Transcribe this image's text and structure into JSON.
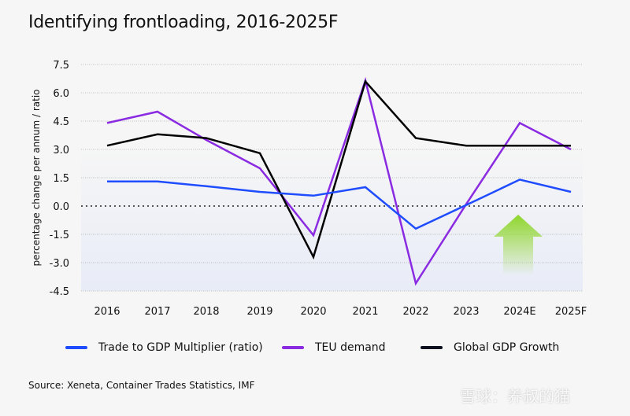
{
  "title": "Identifying frontloading, 2016-2025F",
  "source": "Source: Xeneta, Container Trades Statistics, IMF",
  "watermark": "雪球：养叔的猫",
  "chart_data": {
    "type": "line",
    "title": "Identifying frontloading, 2016-2025F",
    "xlabel": "",
    "ylabel": "percentage change per annum / ratio",
    "categories": [
      "2016",
      "2017",
      "2018",
      "2019",
      "2020",
      "2021",
      "2022",
      "2023",
      "2024E",
      "2025F"
    ],
    "ylim": [
      -4.5,
      7.5
    ],
    "yticks": [
      7.5,
      6.0,
      4.5,
      3.0,
      1.5,
      0.0,
      -1.5,
      -3.0,
      -4.5
    ],
    "ytick_labels": [
      "7.5",
      "6.0",
      "4.5",
      "3.0",
      "1.5",
      "0.0",
      "-1.5",
      "-3.0",
      "-4.5"
    ],
    "grid": true,
    "legend_position": "bottom",
    "series": [
      {
        "name": "Trade to GDP Multiplier (ratio)",
        "color": "#1f4cff",
        "values": [
          1.3,
          1.3,
          1.05,
          0.75,
          0.55,
          1.0,
          -1.2,
          0.05,
          1.4,
          0.75
        ]
      },
      {
        "name": "TEU demand",
        "color": "#8a2be2",
        "values": [
          4.4,
          5.0,
          3.5,
          2.0,
          -1.55,
          6.65,
          -4.1,
          0.1,
          4.4,
          3.0
        ]
      },
      {
        "name": "Global GDP Growth",
        "color": "#000000",
        "values": [
          3.2,
          3.8,
          3.6,
          2.8,
          -2.7,
          6.6,
          3.6,
          3.2,
          3.2,
          3.2
        ]
      }
    ],
    "annotation": {
      "type": "up-arrow",
      "color": "#8fd62e",
      "near_category": "2024E"
    }
  }
}
